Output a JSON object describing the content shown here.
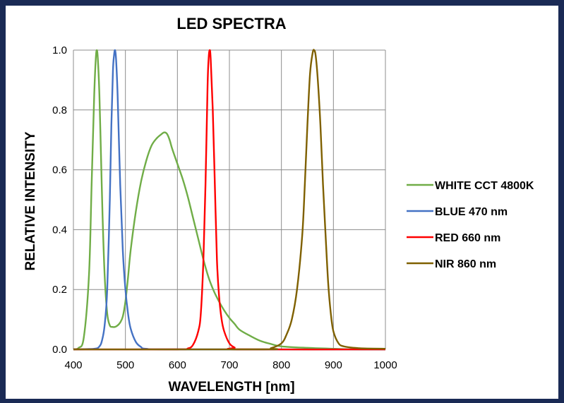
{
  "chart_data": {
    "type": "line",
    "title": "LED SPECTRA",
    "xlabel": "WAVELENGTH [nm]",
    "ylabel": "RELATIVE INTENSITY",
    "xlim": [
      400,
      1000
    ],
    "ylim": [
      0,
      1.0
    ],
    "xticks": [
      "400",
      "500",
      "600",
      "700",
      "800",
      "900",
      "1000"
    ],
    "yticks": [
      "0.0",
      "0.2",
      "0.4",
      "0.6",
      "0.8",
      "1.0"
    ],
    "grid": true,
    "legend_position": "right",
    "series": [
      {
        "name": "WHITE CCT 4800K",
        "color": "#70ad47",
        "x": [
          400,
          410,
          420,
          430,
          435,
          440,
          443,
          445,
          447,
          450,
          453,
          456,
          460,
          465,
          470,
          475,
          480,
          485,
          490,
          495,
          500,
          505,
          510,
          520,
          530,
          540,
          550,
          560,
          570,
          575,
          580,
          585,
          590,
          600,
          610,
          620,
          630,
          640,
          650,
          660,
          670,
          680,
          690,
          700,
          710,
          720,
          740,
          760,
          780,
          800,
          850,
          900,
          950,
          1000
        ],
        "y": [
          0.0,
          0.005,
          0.04,
          0.25,
          0.55,
          0.85,
          0.97,
          1.0,
          0.97,
          0.85,
          0.65,
          0.45,
          0.25,
          0.12,
          0.08,
          0.075,
          0.075,
          0.08,
          0.09,
          0.11,
          0.16,
          0.24,
          0.33,
          0.46,
          0.56,
          0.63,
          0.68,
          0.705,
          0.72,
          0.725,
          0.72,
          0.7,
          0.67,
          0.62,
          0.57,
          0.51,
          0.44,
          0.37,
          0.3,
          0.24,
          0.195,
          0.16,
          0.13,
          0.105,
          0.085,
          0.065,
          0.045,
          0.028,
          0.018,
          0.01,
          0.005,
          0.002,
          0.0,
          0.0
        ]
      },
      {
        "name": "BLUE 470 nm",
        "color": "#4472c4",
        "x": [
          400,
          440,
          450,
          455,
          460,
          465,
          470,
          473,
          476,
          478,
          480,
          482,
          485,
          490,
          495,
          500,
          505,
          510,
          520,
          530,
          540,
          600,
          1000
        ],
        "y": [
          0.0,
          0.002,
          0.01,
          0.03,
          0.08,
          0.2,
          0.5,
          0.75,
          0.93,
          0.98,
          1.0,
          0.97,
          0.85,
          0.55,
          0.33,
          0.2,
          0.12,
          0.07,
          0.025,
          0.008,
          0.002,
          0.0,
          0.0
        ]
      },
      {
        "name": "RED 660 nm",
        "color": "#ff0000",
        "x": [
          400,
          600,
          620,
          630,
          640,
          645,
          650,
          654,
          658,
          660,
          662,
          664,
          668,
          672,
          676,
          680,
          685,
          690,
          700,
          710,
          720,
          1000
        ],
        "y": [
          0.0,
          0.0,
          0.003,
          0.015,
          0.06,
          0.12,
          0.3,
          0.55,
          0.88,
          0.97,
          1.0,
          0.97,
          0.8,
          0.55,
          0.3,
          0.18,
          0.1,
          0.06,
          0.02,
          0.006,
          0.0,
          0.0
        ]
      },
      {
        "name": "NIR 860 nm",
        "color": "#7f6000",
        "x": [
          400,
          760,
          780,
          800,
          810,
          820,
          830,
          840,
          845,
          850,
          855,
          860,
          863,
          866,
          870,
          875,
          880,
          885,
          890,
          895,
          900,
          910,
          920,
          940,
          960,
          1000
        ],
        "y": [
          0.0,
          0.0,
          0.004,
          0.02,
          0.05,
          0.1,
          0.2,
          0.38,
          0.55,
          0.75,
          0.92,
          0.99,
          1.0,
          0.98,
          0.9,
          0.75,
          0.55,
          0.38,
          0.22,
          0.12,
          0.06,
          0.02,
          0.01,
          0.005,
          0.003,
          0.002
        ]
      }
    ]
  }
}
